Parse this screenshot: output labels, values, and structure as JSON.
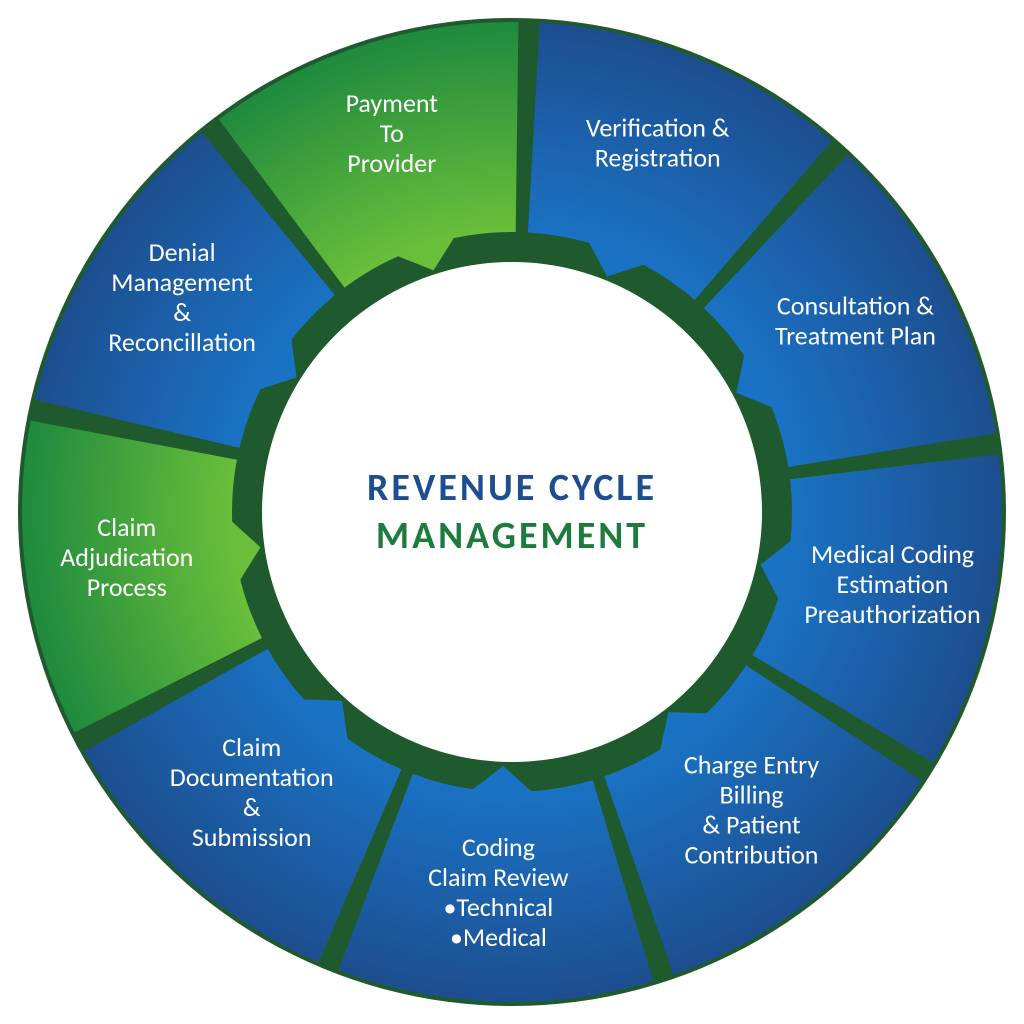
{
  "diagram": {
    "type": "circular-process",
    "center_title_line1": "REVENUE CYCLE",
    "center_title_line2": "MANAGEMENT",
    "center_title_color1": "#1d4e8f",
    "center_title_color2": "#1f7a3e",
    "background_color": "#ffffff",
    "gap_color": "#1f5a2e",
    "outer_radius": 490,
    "inner_radius": 280,
    "gap_degrees": 2.5,
    "label_fontsize": 26,
    "label_color": "#ffffff",
    "segments": [
      {
        "id": "verification",
        "lines": [
          "Verification &",
          "Registration"
        ],
        "color_inner": "#1a72c4",
        "color_outer": "#1d4e8f",
        "type": "blue"
      },
      {
        "id": "consultation",
        "lines": [
          "Consultation &",
          "Treatment Plan"
        ],
        "color_inner": "#1a72c4",
        "color_outer": "#1d4e8f",
        "type": "blue"
      },
      {
        "id": "medical-coding",
        "lines": [
          "Medical Coding",
          "Estimation",
          "Preauthorization"
        ],
        "color_inner": "#1a72c4",
        "color_outer": "#1d4e8f",
        "type": "blue"
      },
      {
        "id": "charge-entry",
        "lines": [
          "Charge Entry",
          "Billing",
          "& Patient",
          "Contribution"
        ],
        "color_inner": "#1a72c4",
        "color_outer": "#1d4e8f",
        "type": "blue"
      },
      {
        "id": "coding-review",
        "lines": [
          "Coding",
          "Claim Review",
          "•Technical",
          "•Medical"
        ],
        "color_inner": "#1a72c4",
        "color_outer": "#1d4e8f",
        "type": "blue"
      },
      {
        "id": "claim-doc",
        "lines": [
          "Claim",
          "Documentation",
          "&",
          "Submission"
        ],
        "color_inner": "#1a72c4",
        "color_outer": "#1d4e8f",
        "type": "blue"
      },
      {
        "id": "claim-adjudication",
        "lines": [
          "Claim",
          "Adjudication",
          "Process"
        ],
        "color_inner": "#6abf3a",
        "color_outer": "#1f8a3e",
        "type": "green"
      },
      {
        "id": "denial-mgmt",
        "lines": [
          "Denial",
          "Management",
          "&",
          "Reconcillation"
        ],
        "color_inner": "#1a72c4",
        "color_outer": "#1d4e8f",
        "type": "blue"
      },
      {
        "id": "payment-provider",
        "lines": [
          "Payment",
          "To",
          "Provider"
        ],
        "color_inner": "#6abf3a",
        "color_outer": "#1f8a3e",
        "type": "green"
      }
    ]
  }
}
